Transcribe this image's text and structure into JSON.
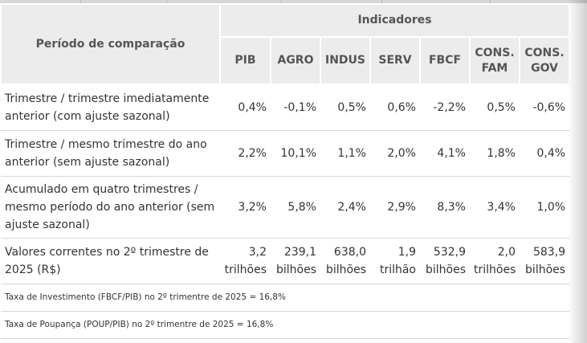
{
  "table": {
    "header": {
      "period_label": "Período de comparação",
      "group_label": "Indicadores",
      "columns": [
        [
          "PIB"
        ],
        [
          "AGRO"
        ],
        [
          "INDUS"
        ],
        [
          "SERV"
        ],
        [
          "FBCF"
        ],
        [
          "CONS.",
          "FAM"
        ],
        [
          "CONS.",
          "GOV"
        ]
      ]
    },
    "rows": [
      {
        "label": [
          "Trimestre / trimestre imediatamente",
          "anterior (com ajuste sazonal)"
        ],
        "values": [
          [
            "0,4%"
          ],
          [
            "-0,1%"
          ],
          [
            "0,5%"
          ],
          [
            "0,6%"
          ],
          [
            "-2,2%"
          ],
          [
            "0,5%"
          ],
          [
            "-0,6%"
          ]
        ]
      },
      {
        "label": [
          "Trimestre / mesmo trimestre do ano",
          "anterior (sem ajuste sazonal)"
        ],
        "values": [
          [
            "2,2%"
          ],
          [
            "10,1%"
          ],
          [
            "1,1%"
          ],
          [
            "2,0%"
          ],
          [
            "4,1%"
          ],
          [
            "1,8%"
          ],
          [
            "0,4%"
          ]
        ]
      },
      {
        "label": [
          "Acumulado em quatro trimestres /",
          "mesmo período do ano anterior (sem",
          "ajuste sazonal)"
        ],
        "values": [
          [
            "3,2%"
          ],
          [
            "5,8%"
          ],
          [
            "2,4%"
          ],
          [
            "2,9%"
          ],
          [
            "8,3%"
          ],
          [
            "3,4%"
          ],
          [
            "1,0%"
          ]
        ]
      },
      {
        "label": [
          "Valores correntes no 2º trimestre de",
          "2025 (R$)"
        ],
        "values": [
          [
            "3,2",
            "trilhões"
          ],
          [
            "239,1",
            "bilhões"
          ],
          [
            "638,0",
            "bilhões"
          ],
          [
            "1,9",
            "trilhão"
          ],
          [
            "532,9",
            "bilhões"
          ],
          [
            "2,0",
            "trilhões"
          ],
          [
            "583,9",
            "bilhões"
          ]
        ]
      }
    ],
    "notes": [
      "Taxa de Investimento (FBCF/PIB) no 2º trimentre de 2025 = 16,8%",
      "Taxa de Poupança (POUP/PIB) no 2º trimentre de 2025 = 16,8%"
    ]
  }
}
